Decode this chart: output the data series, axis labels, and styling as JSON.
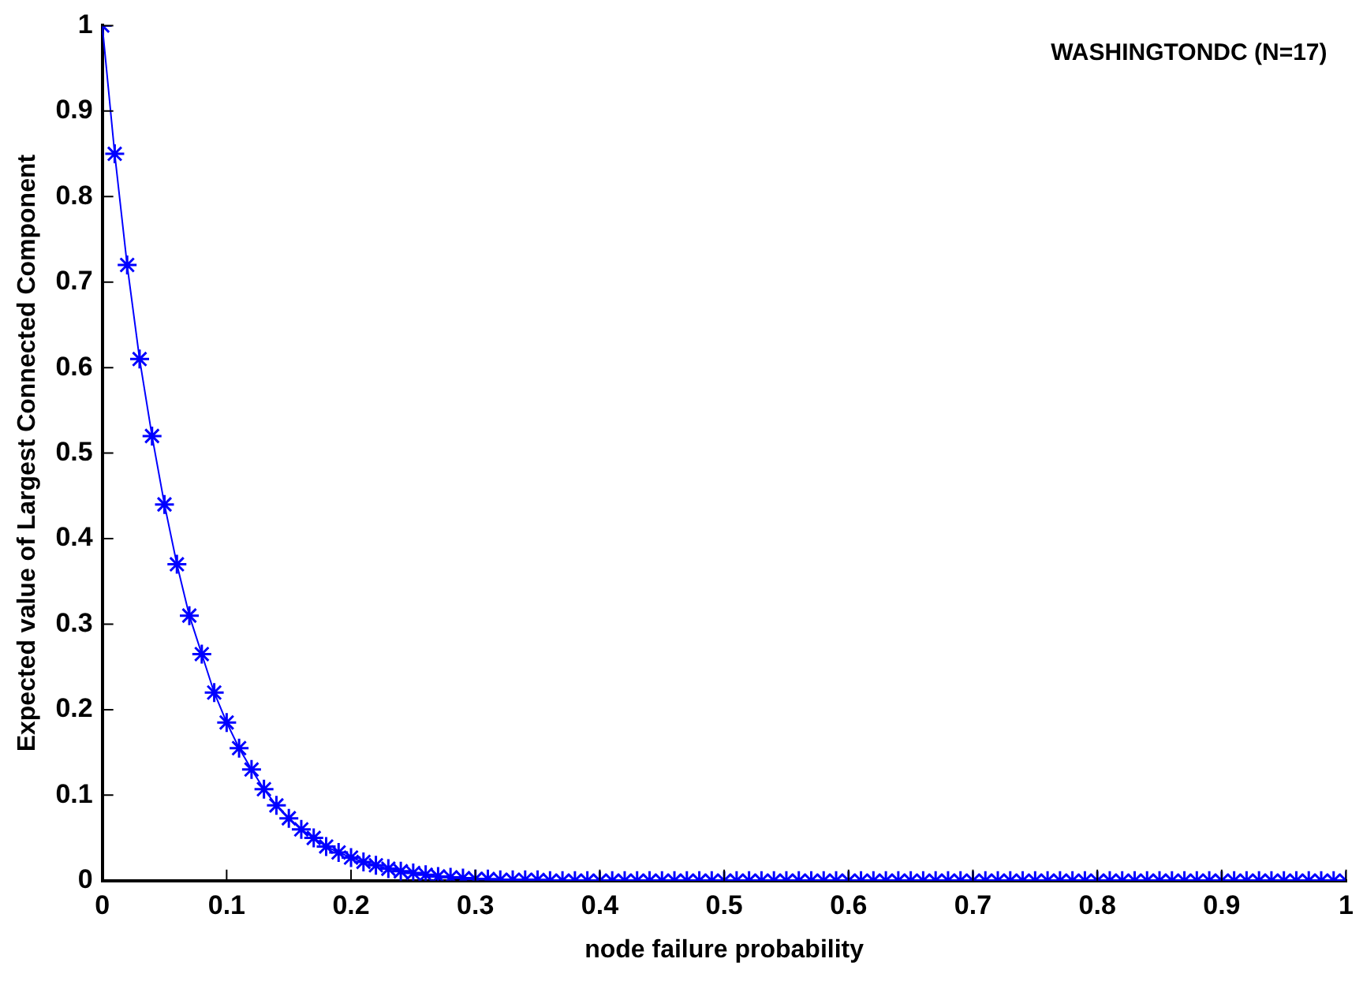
{
  "chart_data": {
    "type": "line",
    "title": "WASHINGTONDC (N=17)",
    "xlabel": "node failure probability",
    "ylabel": "Expected value of Largest Connected Component",
    "x": [
      0,
      0.01,
      0.02,
      0.03,
      0.04,
      0.05,
      0.06,
      0.07,
      0.08,
      0.09,
      0.1,
      0.11,
      0.12,
      0.13,
      0.14,
      0.15,
      0.16,
      0.17,
      0.18,
      0.19,
      0.2,
      0.21,
      0.22,
      0.23,
      0.24,
      0.25,
      0.26,
      0.27,
      0.28,
      0.29,
      0.3,
      0.31,
      0.32,
      0.33,
      0.34,
      0.35,
      0.36,
      0.37,
      0.38,
      0.39,
      0.4,
      0.41,
      0.42,
      0.43,
      0.44,
      0.45,
      0.46,
      0.47,
      0.48,
      0.49,
      0.5,
      0.51,
      0.52,
      0.53,
      0.54,
      0.55,
      0.56,
      0.57,
      0.58,
      0.59,
      0.6,
      0.61,
      0.62,
      0.63,
      0.64,
      0.65,
      0.66,
      0.67,
      0.68,
      0.69,
      0.7,
      0.71,
      0.72,
      0.73,
      0.74,
      0.75,
      0.76,
      0.77,
      0.78,
      0.79,
      0.8,
      0.81,
      0.82,
      0.83,
      0.84,
      0.85,
      0.86,
      0.87,
      0.88,
      0.89,
      0.9,
      0.91,
      0.92,
      0.93,
      0.94,
      0.95,
      0.96,
      0.97,
      0.98,
      0.99,
      1
    ],
    "series": [
      {
        "color": "#0000ff",
        "values": [
          1,
          0.85,
          0.72,
          0.61,
          0.52,
          0.44,
          0.37,
          0.31,
          0.265,
          0.22,
          0.185,
          0.155,
          0.13,
          0.107,
          0.088,
          0.073,
          0.06,
          0.05,
          0.04,
          0.033,
          0.027,
          0.022,
          0.018,
          0.014,
          0.011,
          0.009,
          0.007,
          0.005,
          0.004,
          0.003,
          0.002,
          0.002,
          0.001,
          0.001,
          0.001,
          0.001,
          0,
          0,
          0,
          0,
          0,
          0,
          0,
          0,
          0,
          0,
          0,
          0,
          0,
          0,
          0,
          0,
          0,
          0,
          0,
          0,
          0,
          0,
          0,
          0,
          0,
          0,
          0,
          0,
          0,
          0,
          0,
          0,
          0,
          0,
          0,
          0,
          0,
          0,
          0,
          0,
          0,
          0,
          0,
          0,
          0,
          0,
          0,
          0,
          0,
          0,
          0,
          0,
          0,
          0,
          0,
          0,
          0,
          0,
          0,
          0,
          0,
          0,
          0,
          0,
          0
        ]
      }
    ],
    "xlim": [
      0,
      1
    ],
    "xticks": [
      0,
      0.1,
      0.2,
      0.3,
      0.4,
      0.5,
      0.6,
      0.7,
      0.8,
      0.9,
      1
    ],
    "ylim": [
      0,
      1
    ],
    "yticks": [
      0,
      0.1,
      0.2,
      0.3,
      0.4,
      0.5,
      0.6,
      0.7,
      0.8,
      0.9,
      1
    ],
    "grid": false,
    "legend": false,
    "marker": "cross",
    "line_style": "solid"
  }
}
